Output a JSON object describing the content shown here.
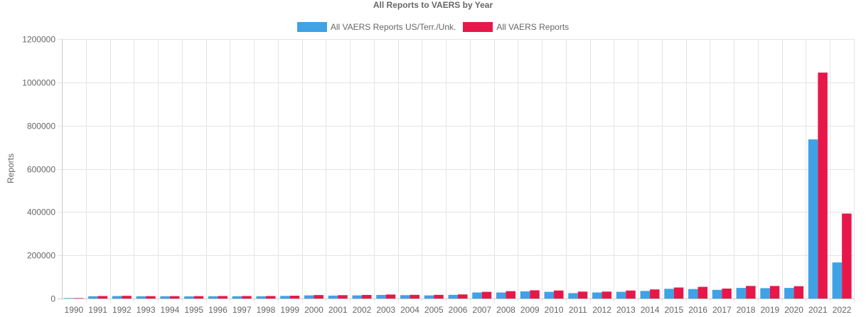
{
  "chart_data": {
    "type": "bar",
    "title": "All Reports to VAERS by Year",
    "ylabel": "Reports",
    "xlabel": "",
    "ylim": [
      0,
      1200000
    ],
    "yticks": [
      "0",
      "200000",
      "400000",
      "600000",
      "800000",
      "1000000",
      "1200000"
    ],
    "grid": true,
    "legend_position": "top-center",
    "categories": [
      "1990",
      "1991",
      "1992",
      "1993",
      "1994",
      "1995",
      "1996",
      "1997",
      "1998",
      "1999",
      "2000",
      "2001",
      "2002",
      "2003",
      "2004",
      "2005",
      "2006",
      "2007",
      "2008",
      "2009",
      "2010",
      "2011",
      "2012",
      "2013",
      "2014",
      "2015",
      "2016",
      "2017",
      "2018",
      "2019",
      "2020",
      "2021",
      "2022"
    ],
    "series": [
      {
        "name": "All VAERS Reports US/Terr./Unk.",
        "color": "#3ea2e5",
        "values": [
          2000,
          10500,
          11500,
          10500,
          10500,
          10000,
          10500,
          10500,
          10500,
          12000,
          14500,
          13500,
          14500,
          16500,
          15500,
          14500,
          17000,
          28000,
          28000,
          33000,
          31000,
          25000,
          28000,
          31000,
          35000,
          45000,
          44000,
          40000,
          49000,
          48000,
          49000,
          736000,
          167000
        ]
      },
      {
        "name": "All VAERS Reports",
        "color": "#e8174a",
        "values": [
          2000,
          11500,
          12500,
          11000,
          11000,
          11000,
          11500,
          11500,
          11500,
          13000,
          16000,
          15500,
          16500,
          18500,
          17000,
          17000,
          19000,
          31000,
          34000,
          38000,
          37000,
          32000,
          32000,
          37000,
          42000,
          51000,
          54000,
          46000,
          58000,
          58000,
          57000,
          1045000,
          393000
        ]
      }
    ]
  }
}
